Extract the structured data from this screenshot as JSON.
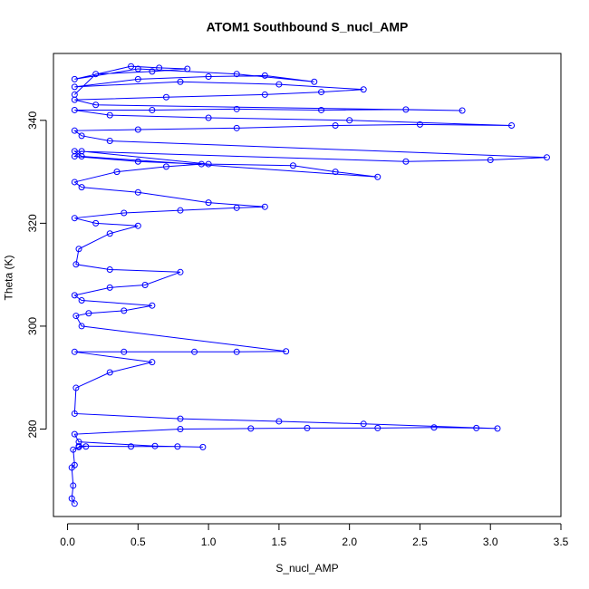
{
  "chart_data": {
    "type": "line",
    "title": "ATOM1 Southbound S_nucl_AMP",
    "xlabel": "S_nucl_AMP",
    "ylabel": "Theta (K)",
    "xlim": [
      -0.1,
      3.5
    ],
    "ylim": [
      263,
      353
    ],
    "xticks": [
      0.0,
      0.5,
      1.0,
      1.5,
      2.0,
      2.5,
      3.0,
      3.5
    ],
    "xtick_labels": [
      "0.0",
      "0.5",
      "1.0",
      "1.5",
      "2.0",
      "2.5",
      "3.0",
      "3.5"
    ],
    "yticks": [
      280,
      300,
      320,
      340
    ],
    "ytick_labels": [
      "280",
      "300",
      "320",
      "340"
    ],
    "grid": false,
    "legend": "none",
    "series": [
      {
        "color": "#0000ff",
        "marker": "open-circle",
        "x": [
          0.05,
          0.03,
          0.04,
          0.03,
          0.05,
          0.04,
          0.08,
          0.13,
          0.08,
          0.45,
          0.78,
          0.96,
          0.62,
          0.08,
          0.05,
          0.8,
          1.3,
          1.7,
          2.2,
          2.6,
          2.9,
          3.05,
          2.1,
          1.5,
          0.8,
          0.05,
          0.06,
          0.3,
          0.6,
          0.05,
          0.4,
          0.9,
          1.2,
          1.55,
          0.1,
          0.06,
          0.15,
          0.4,
          0.6,
          0.1,
          0.05,
          0.3,
          0.55,
          0.8,
          0.3,
          0.06,
          0.08,
          0.3,
          0.5,
          0.2,
          0.05,
          0.4,
          0.8,
          1.2,
          1.4,
          1.0,
          0.5,
          0.1,
          0.05,
          0.35,
          0.7,
          0.95,
          0.5,
          0.05,
          0.1,
          1.0,
          1.6,
          1.9,
          2.2,
          0.1,
          0.05,
          2.4,
          3.0,
          3.4,
          0.3,
          0.1,
          0.05,
          0.5,
          1.2,
          1.9,
          2.5,
          3.15,
          2.0,
          1.0,
          0.3,
          0.05,
          0.6,
          1.2,
          1.8,
          2.4,
          2.8,
          0.2,
          0.05,
          0.7,
          1.4,
          1.8,
          2.1,
          1.5,
          0.8,
          0.05,
          0.5,
          1.0,
          1.4,
          1.75,
          1.2,
          0.5,
          0.05,
          0.45,
          0.65,
          0.85,
          0.6,
          0.2,
          0.05
        ],
        "y": [
          265.5,
          266.5,
          269.0,
          272.5,
          273.0,
          276.0,
          276.5,
          276.6,
          276.7,
          276.6,
          276.6,
          276.5,
          276.7,
          277.5,
          279.0,
          280.0,
          280.1,
          280.2,
          280.2,
          280.3,
          280.2,
          280.1,
          281.0,
          281.5,
          282.0,
          283.0,
          288.0,
          291.0,
          293.0,
          295.0,
          295.0,
          295.0,
          295.0,
          295.1,
          300.0,
          302.0,
          302.5,
          303.0,
          304.0,
          305.0,
          306.0,
          307.5,
          308.0,
          310.5,
          311.0,
          312.0,
          315.0,
          318.0,
          319.5,
          320.0,
          321.0,
          322.0,
          322.5,
          323.0,
          323.2,
          324.0,
          326.0,
          327.0,
          328.0,
          330.0,
          331.0,
          331.5,
          332.0,
          333.0,
          334.0,
          331.5,
          331.2,
          330.0,
          329.0,
          333.0,
          334.0,
          332.0,
          332.3,
          332.8,
          336.0,
          337.0,
          338.0,
          338.2,
          338.5,
          339.0,
          339.2,
          339.0,
          340.0,
          340.5,
          341.0,
          342.0,
          342.0,
          342.2,
          342.0,
          342.1,
          341.9,
          343.0,
          344.0,
          344.5,
          345.0,
          345.5,
          346.0,
          347.0,
          347.5,
          346.5,
          348.0,
          348.5,
          348.7,
          347.5,
          349.0,
          350.0,
          348.0,
          350.5,
          350.2,
          350.0,
          349.5,
          349.0,
          345.0
        ]
      }
    ]
  }
}
